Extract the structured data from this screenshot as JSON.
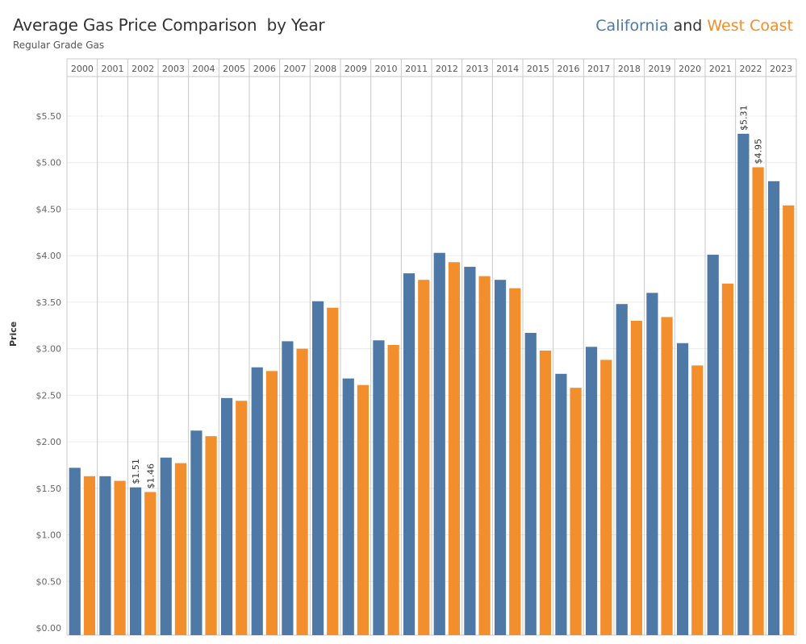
{
  "header": {
    "title": "Average Gas Price Comparison  by Year",
    "subtitle": "Regular Grade Gas",
    "legend_california": "California",
    "legend_and": "and",
    "legend_west_coast": "West Coast"
  },
  "colors": {
    "california": "#4e79a7",
    "west_coast": "#f28e2b"
  },
  "chart_data": {
    "type": "bar",
    "title": "Average Gas Price Comparison  by Year",
    "subtitle": "Regular Grade Gas",
    "ylabel": "Price",
    "xlabel": "",
    "categories": [
      "2000",
      "2001",
      "2002",
      "2003",
      "2004",
      "2005",
      "2006",
      "2007",
      "2008",
      "2009",
      "2010",
      "2011",
      "2012",
      "2013",
      "2014",
      "2015",
      "2016",
      "2017",
      "2018",
      "2019",
      "2020",
      "2021",
      "2022",
      "2023"
    ],
    "series": [
      {
        "name": "California",
        "color": "#4e79a7",
        "values": [
          1.72,
          1.63,
          1.51,
          1.83,
          2.12,
          2.47,
          2.8,
          3.08,
          3.51,
          2.68,
          3.09,
          3.81,
          4.03,
          3.88,
          3.74,
          3.17,
          2.73,
          3.02,
          3.48,
          3.6,
          3.06,
          4.01,
          5.31,
          4.8
        ]
      },
      {
        "name": "West Coast",
        "color": "#f28e2b",
        "values": [
          1.63,
          1.58,
          1.46,
          1.77,
          2.06,
          2.44,
          2.76,
          3.0,
          3.44,
          2.61,
          3.04,
          3.74,
          3.93,
          3.78,
          3.65,
          2.98,
          2.58,
          2.88,
          3.3,
          3.34,
          2.82,
          3.7,
          4.95,
          4.54
        ]
      }
    ],
    "data_labels": [
      {
        "series": "California",
        "category": "2002",
        "text": "$1.51"
      },
      {
        "series": "West Coast",
        "category": "2002",
        "text": "$1.46"
      },
      {
        "series": "California",
        "category": "2022",
        "text": "$5.31"
      },
      {
        "series": "West Coast",
        "category": "2022",
        "text": "$4.95"
      }
    ],
    "yticks": [
      "$0.00",
      "$0.50",
      "$1.00",
      "$1.50",
      "$2.00",
      "$2.50",
      "$3.00",
      "$3.50",
      "$4.00",
      "$4.50",
      "$5.00",
      "$5.50"
    ],
    "ylim": [
      0,
      5.9
    ],
    "grid": true,
    "legend_position": "top-right"
  }
}
